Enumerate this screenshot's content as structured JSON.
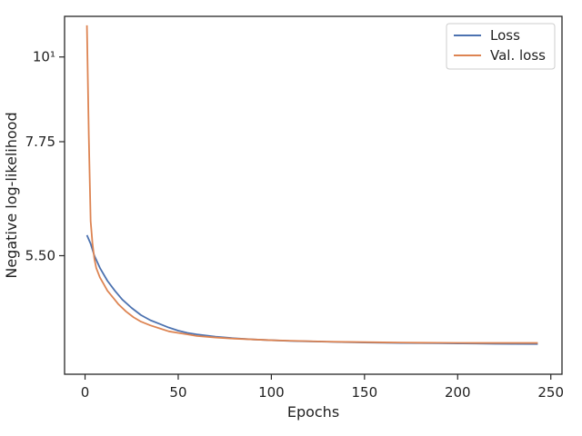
{
  "chart_data": {
    "type": "line",
    "xlabel": "Epochs",
    "ylabel": "Negative log-likelihood",
    "yscale": "log",
    "xlim": [
      -11,
      256
    ],
    "ylim": [
      3.85,
      11.3
    ],
    "grid": false,
    "legend_position": "top-right",
    "x_ticks": [
      {
        "value": 0,
        "label": "0"
      },
      {
        "value": 50,
        "label": "50"
      },
      {
        "value": 100,
        "label": "100"
      },
      {
        "value": 150,
        "label": "150"
      },
      {
        "value": 200,
        "label": "200"
      },
      {
        "value": 250,
        "label": "250"
      }
    ],
    "y_ticks": [
      {
        "value": 5.5,
        "label": "5.50"
      },
      {
        "value": 7.75,
        "label": "7.75"
      },
      {
        "value": 10,
        "label": "10¹"
      }
    ],
    "series": [
      {
        "name": "Loss",
        "color": "#4c72b0",
        "x": [
          1,
          3,
          5,
          8,
          12,
          16,
          20,
          25,
          30,
          35,
          40,
          45,
          50,
          55,
          60,
          70,
          80,
          90,
          100,
          110,
          120,
          130,
          140,
          150,
          160,
          170,
          180,
          190,
          200,
          210,
          220,
          230,
          243
        ],
        "y": [
          5.85,
          5.7,
          5.5,
          5.3,
          5.1,
          4.95,
          4.82,
          4.7,
          4.6,
          4.53,
          4.48,
          4.43,
          4.39,
          4.36,
          4.34,
          4.31,
          4.29,
          4.275,
          4.265,
          4.255,
          4.25,
          4.245,
          4.24,
          4.235,
          4.232,
          4.23,
          4.228,
          4.226,
          4.224,
          4.222,
          4.22,
          4.218,
          4.217
        ]
      },
      {
        "name": "Val. loss",
        "color": "#dd8452",
        "x": [
          1,
          2,
          3,
          4,
          5,
          6,
          8,
          10,
          12,
          15,
          18,
          22,
          26,
          30,
          35,
          40,
          45,
          50,
          55,
          60,
          70,
          80,
          90,
          100,
          110,
          120,
          130,
          140,
          150,
          160,
          170,
          180,
          190,
          200,
          210,
          220,
          230,
          243
        ],
        "y": [
          11.0,
          7.9,
          6.1,
          5.7,
          5.45,
          5.3,
          5.15,
          5.05,
          4.95,
          4.85,
          4.75,
          4.65,
          4.57,
          4.51,
          4.46,
          4.42,
          4.38,
          4.36,
          4.34,
          4.32,
          4.3,
          4.285,
          4.275,
          4.265,
          4.258,
          4.252,
          4.247,
          4.243,
          4.24,
          4.237,
          4.235,
          4.233,
          4.232,
          4.231,
          4.23,
          4.23,
          4.23,
          4.23
        ]
      }
    ]
  }
}
